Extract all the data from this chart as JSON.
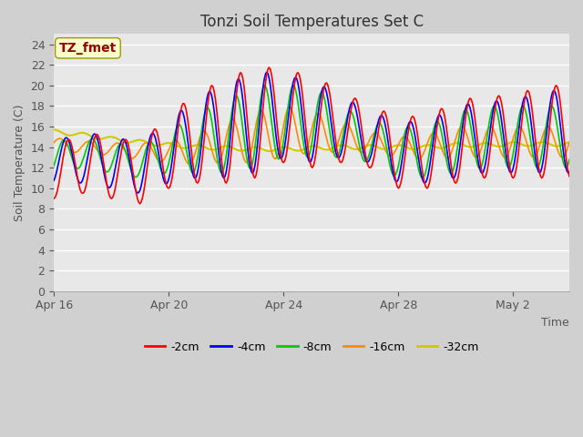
{
  "title": "Tonzi Soil Temperatures Set C",
  "xlabel": "Time",
  "ylabel": "Soil Temperature (C)",
  "ylim": [
    0,
    25
  ],
  "yticks": [
    0,
    2,
    4,
    6,
    8,
    10,
    12,
    14,
    16,
    18,
    20,
    22,
    24
  ],
  "legend_labels": [
    "-2cm",
    "-4cm",
    "-8cm",
    "-16cm",
    "-32cm"
  ],
  "legend_colors": [
    "#ff0000",
    "#0000ff",
    "#00cc00",
    "#ff8c00",
    "#cccc00"
  ],
  "annotation_text": "TZ_fmet",
  "annotation_color": "#990000",
  "annotation_bg": "#ffffcc",
  "annotation_edge": "#999900",
  "xtick_labels": [
    "Apr 16",
    "Apr 20",
    "Apr 24",
    "Apr 28",
    "May 2"
  ],
  "xtick_positions": [
    0,
    96,
    192,
    288,
    384
  ],
  "total_points": 432,
  "fig_bg": "#d0d0d0",
  "plot_bg": "#e8e8e8"
}
